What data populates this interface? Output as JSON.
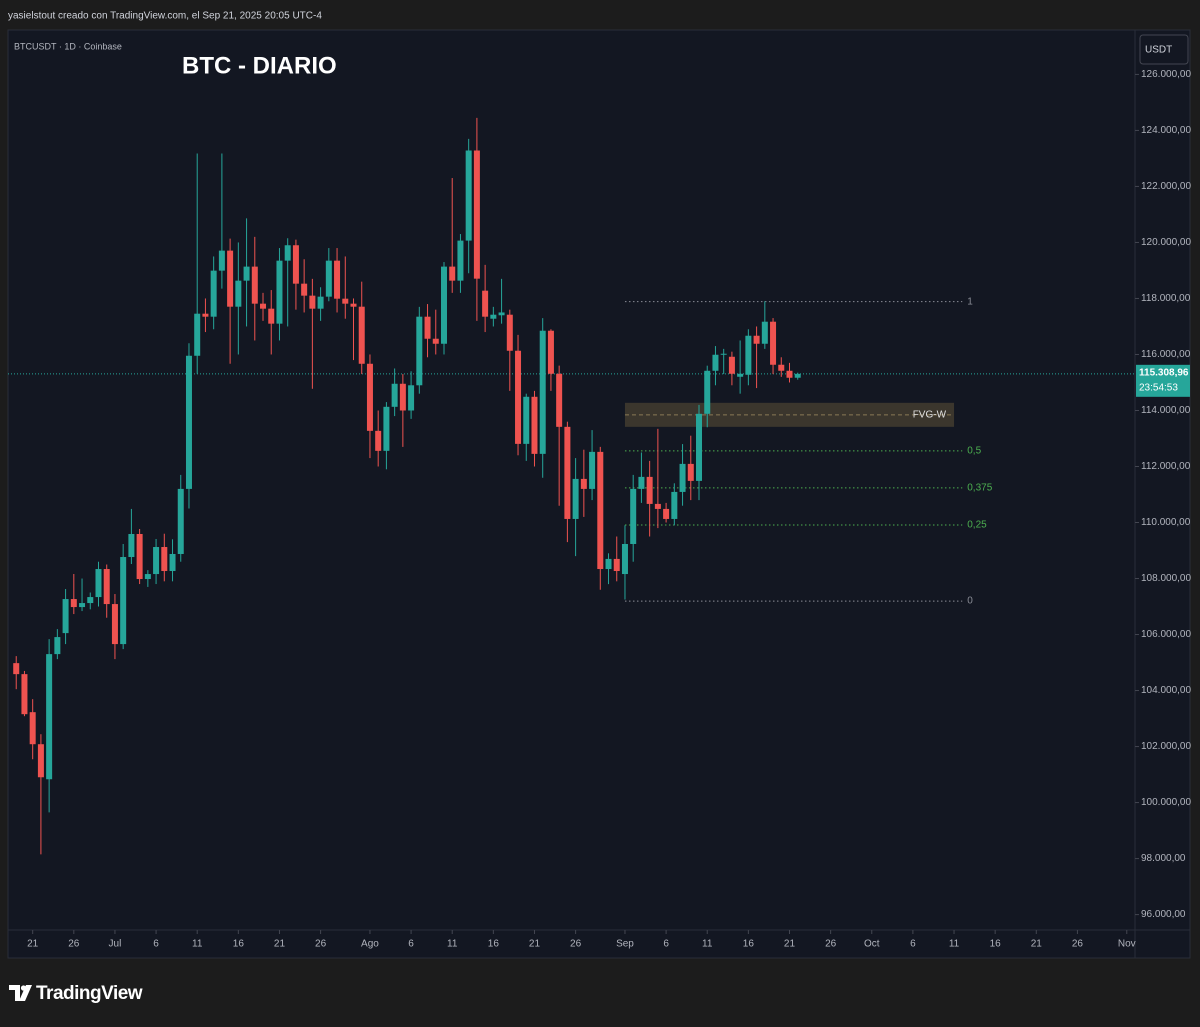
{
  "header": {
    "credit": "yasielstout creado con TradingView.com, el Sep 21, 2025 20:05 UTC-4"
  },
  "footer": {
    "brand": "TradingView"
  },
  "chart_data": {
    "type": "candlestick",
    "title": "BTC - DIARIO",
    "symbol": "BTCUSDT · 1D · Coinbase",
    "currency": "USDT",
    "countdown": "23:54:53",
    "up_color": "#26a69a",
    "down_color": "#ef5350",
    "grid": false,
    "xlim": [
      "2025-06-18",
      "2025-11-02"
    ],
    "ylim": [
      95450,
      127550
    ],
    "xticks": [
      {
        "value": "2025-06-21",
        "label": "21"
      },
      {
        "value": "2025-06-26",
        "label": "26"
      },
      {
        "value": "2025-07-01",
        "label": "Jul"
      },
      {
        "value": "2025-07-06",
        "label": "6"
      },
      {
        "value": "2025-07-11",
        "label": "11"
      },
      {
        "value": "2025-07-16",
        "label": "16"
      },
      {
        "value": "2025-07-21",
        "label": "21"
      },
      {
        "value": "2025-07-26",
        "label": "26"
      },
      {
        "value": "2025-08-01",
        "label": "Ago"
      },
      {
        "value": "2025-08-06",
        "label": "6"
      },
      {
        "value": "2025-08-11",
        "label": "11"
      },
      {
        "value": "2025-08-16",
        "label": "16"
      },
      {
        "value": "2025-08-21",
        "label": "21"
      },
      {
        "value": "2025-08-26",
        "label": "26"
      },
      {
        "value": "2025-09-01",
        "label": "Sep"
      },
      {
        "value": "2025-09-06",
        "label": "6"
      },
      {
        "value": "2025-09-11",
        "label": "11"
      },
      {
        "value": "2025-09-16",
        "label": "16"
      },
      {
        "value": "2025-09-21",
        "label": "21"
      },
      {
        "value": "2025-09-26",
        "label": "26"
      },
      {
        "value": "2025-10-01",
        "label": "Oct"
      },
      {
        "value": "2025-10-06",
        "label": "6"
      },
      {
        "value": "2025-10-11",
        "label": "11"
      },
      {
        "value": "2025-10-16",
        "label": "16"
      },
      {
        "value": "2025-10-21",
        "label": "21"
      },
      {
        "value": "2025-10-26",
        "label": "26"
      },
      {
        "value": "2025-11-01",
        "label": "Nov"
      }
    ],
    "yticks": [
      {
        "value": 96000,
        "label": "96.000,00"
      },
      {
        "value": 98000,
        "label": "98.000,00"
      },
      {
        "value": 100000,
        "label": "100.000,00"
      },
      {
        "value": 102000,
        "label": "102.000,00"
      },
      {
        "value": 104000,
        "label": "104.000,00"
      },
      {
        "value": 106000,
        "label": "106.000,00"
      },
      {
        "value": 108000,
        "label": "108.000,00"
      },
      {
        "value": 110000,
        "label": "110.000,00"
      },
      {
        "value": 112000,
        "label": "112.000,00"
      },
      {
        "value": 114000,
        "label": "114.000,00"
      },
      {
        "value": 116000,
        "label": "116.000,00"
      },
      {
        "value": 118000,
        "label": "118.000,00"
      },
      {
        "value": 120000,
        "label": "120.000,00"
      },
      {
        "value": 122000,
        "label": "122.000,00"
      },
      {
        "value": 124000,
        "label": "124.000,00"
      },
      {
        "value": 126000,
        "label": "126.000,00"
      }
    ],
    "x": [
      "2025-06-19",
      "2025-06-20",
      "2025-06-21",
      "2025-06-22",
      "2025-06-23",
      "2025-06-24",
      "2025-06-25",
      "2025-06-26",
      "2025-06-27",
      "2025-06-28",
      "2025-06-29",
      "2025-06-30",
      "2025-07-01",
      "2025-07-02",
      "2025-07-03",
      "2025-07-04",
      "2025-07-05",
      "2025-07-06",
      "2025-07-07",
      "2025-07-08",
      "2025-07-09",
      "2025-07-10",
      "2025-07-11",
      "2025-07-12",
      "2025-07-13",
      "2025-07-14",
      "2025-07-15",
      "2025-07-16",
      "2025-07-17",
      "2025-07-18",
      "2025-07-19",
      "2025-07-20",
      "2025-07-21",
      "2025-07-22",
      "2025-07-23",
      "2025-07-24",
      "2025-07-25",
      "2025-07-26",
      "2025-07-27",
      "2025-07-28",
      "2025-07-29",
      "2025-07-30",
      "2025-07-31",
      "2025-08-01",
      "2025-08-02",
      "2025-08-03",
      "2025-08-04",
      "2025-08-05",
      "2025-08-06",
      "2025-08-07",
      "2025-08-08",
      "2025-08-09",
      "2025-08-10",
      "2025-08-11",
      "2025-08-12",
      "2025-08-13",
      "2025-08-14",
      "2025-08-15",
      "2025-08-16",
      "2025-08-17",
      "2025-08-18",
      "2025-08-19",
      "2025-08-20",
      "2025-08-21",
      "2025-08-22",
      "2025-08-23",
      "2025-08-24",
      "2025-08-25",
      "2025-08-26",
      "2025-08-27",
      "2025-08-28",
      "2025-08-29",
      "2025-08-30",
      "2025-08-31",
      "2025-09-01",
      "2025-09-02",
      "2025-09-03",
      "2025-09-04",
      "2025-09-05",
      "2025-09-06",
      "2025-09-07",
      "2025-09-08",
      "2025-09-09",
      "2025-09-10",
      "2025-09-11",
      "2025-09-12",
      "2025-09-13",
      "2025-09-14",
      "2025-09-15",
      "2025-09-16",
      "2025-09-17",
      "2025-09-18",
      "2025-09-19",
      "2025-09-20",
      "2025-09-21",
      "2025-09-22"
    ],
    "open": [
      104979,
      104586,
      103228,
      102084,
      100833,
      105301,
      106051,
      107267,
      106981,
      107124,
      107338,
      108339,
      107088,
      105659,
      108768,
      109590,
      107982,
      108160,
      109125,
      108268,
      108876,
      111200,
      115954,
      117456,
      117349,
      118993,
      119708,
      117706,
      118636,
      119137,
      117814,
      117635,
      117100,
      119350,
      119900,
      118528,
      118100,
      117635,
      118064,
      119350,
      117992,
      117814,
      117706,
      115668,
      113273,
      112559,
      114131,
      114954,
      114000,
      114900,
      117349,
      116562,
      116383,
      119137,
      118636,
      120066,
      123283,
      118278,
      117277,
      117400,
      117420,
      116133,
      112808,
      114489,
      112451,
      116848,
      115311,
      113416,
      110127,
      111557,
      111200,
      112522,
      108339,
      108700,
      108160,
      109233,
      111200,
      111629,
      110664,
      110485,
      110127,
      111092,
      112093,
      111486,
      113881,
      115418,
      115990,
      115918,
      115204,
      115275,
      116669,
      116383,
      117170,
      115633,
      115418,
      115169
    ],
    "high": [
      105229,
      104700,
      103692,
      102441,
      105837,
      106194,
      107625,
      108161,
      108000,
      107500,
      108600,
      108500,
      107446,
      109233,
      110485,
      109769,
      108300,
      109412,
      109600,
      109400,
      111700,
      116400,
      123176,
      118000,
      119500,
      123176,
      120137,
      120000,
      120860,
      120200,
      118200,
      118300,
      119800,
      120150,
      120100,
      119400,
      118700,
      118400,
      119800,
      119800,
      119500,
      118000,
      118600,
      116000,
      114000,
      114300,
      115500,
      115300,
      115400,
      117700,
      117800,
      117600,
      119300,
      122300,
      120300,
      123700,
      124450,
      119200,
      117700,
      118700,
      117600,
      116700,
      114600,
      114700,
      117300,
      116900,
      115600,
      113600,
      112300,
      112600,
      113300,
      112700,
      108900,
      109500,
      109900,
      111700,
      112500,
      112200,
      113345,
      110700,
      111400,
      112800,
      113100,
      114200,
      115600,
      116300,
      116200,
      116100,
      116500,
      116900,
      117000,
      117900,
      117300,
      115900,
      115700,
      115350
    ],
    "low": [
      104049,
      103085,
      101547,
      98151,
      99652,
      105122,
      105659,
      106731,
      106838,
      106900,
      107000,
      106600,
      105122,
      105480,
      108518,
      107803,
      107700,
      107803,
      107900,
      107900,
      108600,
      110500,
      115311,
      116800,
      116900,
      118349,
      115669,
      116000,
      117000,
      116500,
      117200,
      116000,
      116500,
      117000,
      117600,
      117500,
      114775,
      117200,
      117900,
      117500,
      117277,
      115800,
      115300,
      112300,
      112000,
      111900,
      113800,
      112700,
      113700,
      114600,
      115900,
      116000,
      116000,
      118200,
      118200,
      118900,
      117200,
      116800,
      117000,
      117100,
      114700,
      112400,
      112200,
      112000,
      111600,
      114700,
      110600,
      109300,
      108800,
      110200,
      110800,
      107600,
      107800,
      107900,
      107250,
      108600,
      110700,
      109500,
      109800,
      110000,
      109900,
      110600,
      110800,
      110800,
      113400,
      114900,
      115300,
      114900,
      114600,
      114900,
      114800,
      116200,
      115300,
      115200,
      115000,
      115100
    ],
    "close": [
      104586,
      103156,
      102084,
      100904,
      105301,
      105909,
      107267,
      106981,
      107124,
      107338,
      108339,
      107088,
      105659,
      108768,
      109590,
      107982,
      108160,
      109125,
      108268,
      108876,
      111200,
      115954,
      117456,
      117349,
      118993,
      119708,
      117706,
      118636,
      119137,
      117814,
      117635,
      117100,
      119350,
      119900,
      118528,
      118100,
      117635,
      118064,
      119350,
      117992,
      117814,
      117706,
      115668,
      113273,
      112559,
      114131,
      114954,
      114000,
      114900,
      117349,
      116562,
      116383,
      119137,
      118636,
      120066,
      123283,
      118707,
      117349,
      117420,
      117500,
      116133,
      112808,
      114489,
      112451,
      116848,
      115311,
      113416,
      110127,
      111557,
      111200,
      112522,
      108339,
      108700,
      108268,
      109233,
      111200,
      111629,
      110664,
      110485,
      110127,
      111092,
      112093,
      111486,
      113881,
      115418,
      115990,
      116026,
      115311,
      115311,
      116669,
      116383,
      117170,
      115633,
      115418,
      115169,
      115308.96
    ],
    "last_price": {
      "value": 115308.96,
      "label": "115.308,96"
    },
    "levels": [
      {
        "label": "1",
        "value": 117885,
        "from": "2025-09-01",
        "to": "2025-10-12",
        "color": "#8a8d96"
      },
      {
        "label": "0,5",
        "value": 112558,
        "from": "2025-09-01",
        "to": "2025-10-12",
        "color": "#4caf50"
      },
      {
        "label": "0,375",
        "value": 111235,
        "from": "2025-09-01",
        "to": "2025-10-12",
        "color": "#4caf50"
      },
      {
        "label": "0,25",
        "value": 109913,
        "from": "2025-09-01",
        "to": "2025-10-12",
        "color": "#4caf50"
      },
      {
        "label": "0",
        "value": 107195,
        "from": "2025-09-01",
        "to": "2025-10-12",
        "color": "#8a8d96"
      }
    ],
    "zones": [
      {
        "label": "FVG-W",
        "top": 114274,
        "bottom": 113416,
        "from": "2025-09-01",
        "to": "2025-10-11",
        "color": "#4a4232"
      }
    ]
  }
}
